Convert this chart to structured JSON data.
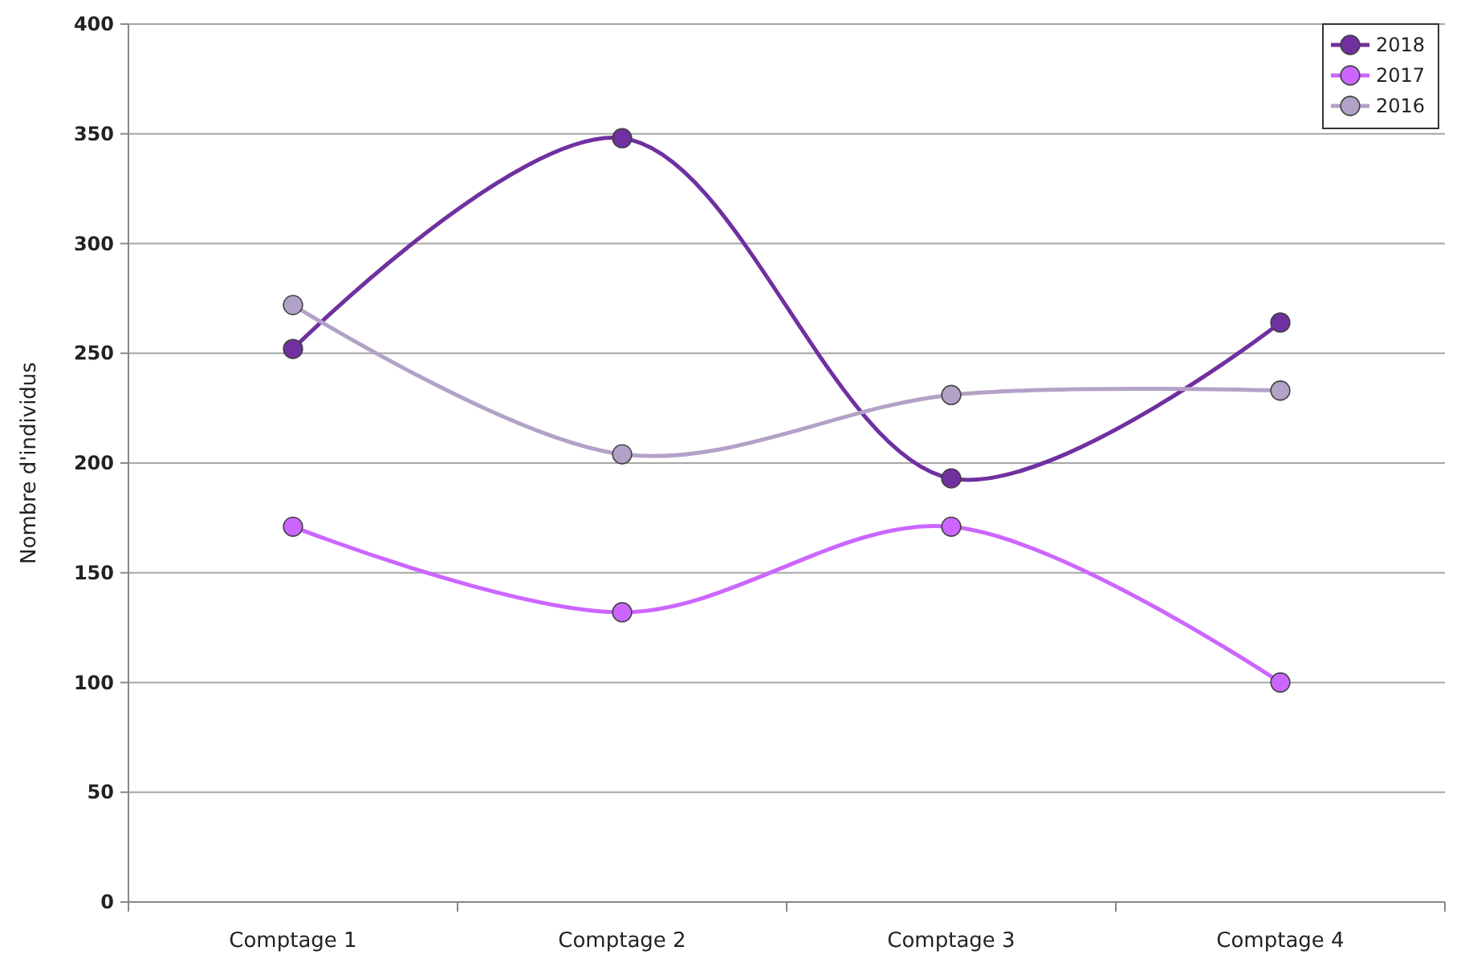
{
  "chart_data": {
    "type": "line",
    "ylabel": "Nombre d'individus",
    "categories": [
      "Comptage 1",
      "Comptage 2",
      "Comptage 3",
      "Comptage 4"
    ],
    "series": [
      {
        "name": "2018",
        "color": "#7030a0",
        "values": [
          252,
          348,
          193,
          264
        ]
      },
      {
        "name": "2017",
        "color": "#cc66ff",
        "values": [
          171,
          132,
          171,
          100
        ]
      },
      {
        "name": "2016",
        "color": "#b3a2c7",
        "values": [
          272,
          204,
          231,
          233
        ]
      }
    ],
    "ylim": [
      0,
      400
    ],
    "yticks": [
      0,
      50,
      100,
      150,
      200,
      250,
      300,
      350,
      400
    ],
    "grid": "y",
    "legend": "top right",
    "marker": "circle",
    "line_style": "solid"
  }
}
